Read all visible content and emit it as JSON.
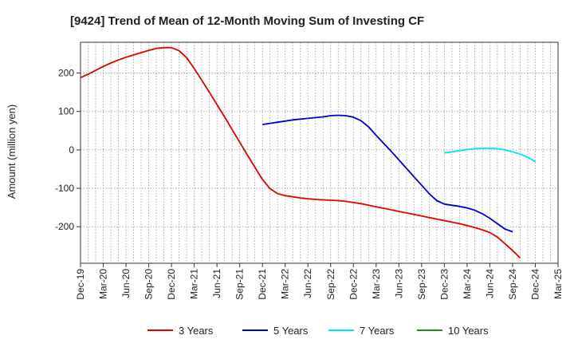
{
  "chart_data": {
    "type": "line",
    "title": "[9424]  Trend of Mean of 12-Month Moving Sum of Investing CF",
    "xlabel": "",
    "ylabel": "Amount (million yen)",
    "x_tick_labels": [
      "Dec-19",
      "Mar-20",
      "Jun-20",
      "Sep-20",
      "Dec-20",
      "Mar-21",
      "Jun-21",
      "Sep-21",
      "Dec-21",
      "Mar-22",
      "Jun-22",
      "Sep-22",
      "Dec-22",
      "Mar-23",
      "Jun-23",
      "Sep-23",
      "Dec-23",
      "Mar-24",
      "Jun-24",
      "Sep-24",
      "Dec-24",
      "Mar-25"
    ],
    "y_ticks": [
      -200,
      -100,
      0,
      100,
      200
    ],
    "ylim": [
      -295,
      280
    ],
    "grid": true,
    "legend_position": "bottom",
    "series": [
      {
        "name": "3 Years",
        "color": "#e00000",
        "start_index": 0,
        "values": [
          188,
          197,
          207,
          217,
          226,
          234,
          241,
          247,
          253,
          259,
          264,
          266,
          266,
          258,
          240,
          212,
          181,
          150,
          118,
          86,
          53,
          20,
          -13,
          -45,
          -77,
          -101,
          -114,
          -119,
          -122,
          -125,
          -127,
          -129,
          -130,
          -131,
          -132,
          -134,
          -137,
          -140,
          -144,
          -148,
          -152,
          -156,
          -160,
          -164,
          -168,
          -172,
          -176,
          -180,
          -184,
          -188,
          -192,
          -197,
          -202,
          -208,
          -215,
          -227,
          -244,
          -262,
          -281
        ]
      },
      {
        "name": "5 Years",
        "color": "#0000cc",
        "start_index": 24,
        "values": [
          66,
          69,
          72,
          75,
          78,
          80,
          82,
          84,
          86,
          89,
          90,
          89,
          85,
          76,
          60,
          38,
          17,
          -4,
          -26,
          -48,
          -70,
          -92,
          -114,
          -132,
          -141,
          -144,
          -147,
          -151,
          -157,
          -166,
          -178,
          -192,
          -206,
          -213
        ]
      },
      {
        "name": "7 Years",
        "color": "#00e5e5",
        "start_index": 48,
        "values": [
          -8,
          -5,
          -2,
          1,
          3,
          4,
          4,
          3,
          0,
          -5,
          -11,
          -19,
          -31
        ]
      },
      {
        "name": "10 Years",
        "color": "#228b22",
        "start_index": 60,
        "values": []
      }
    ]
  }
}
